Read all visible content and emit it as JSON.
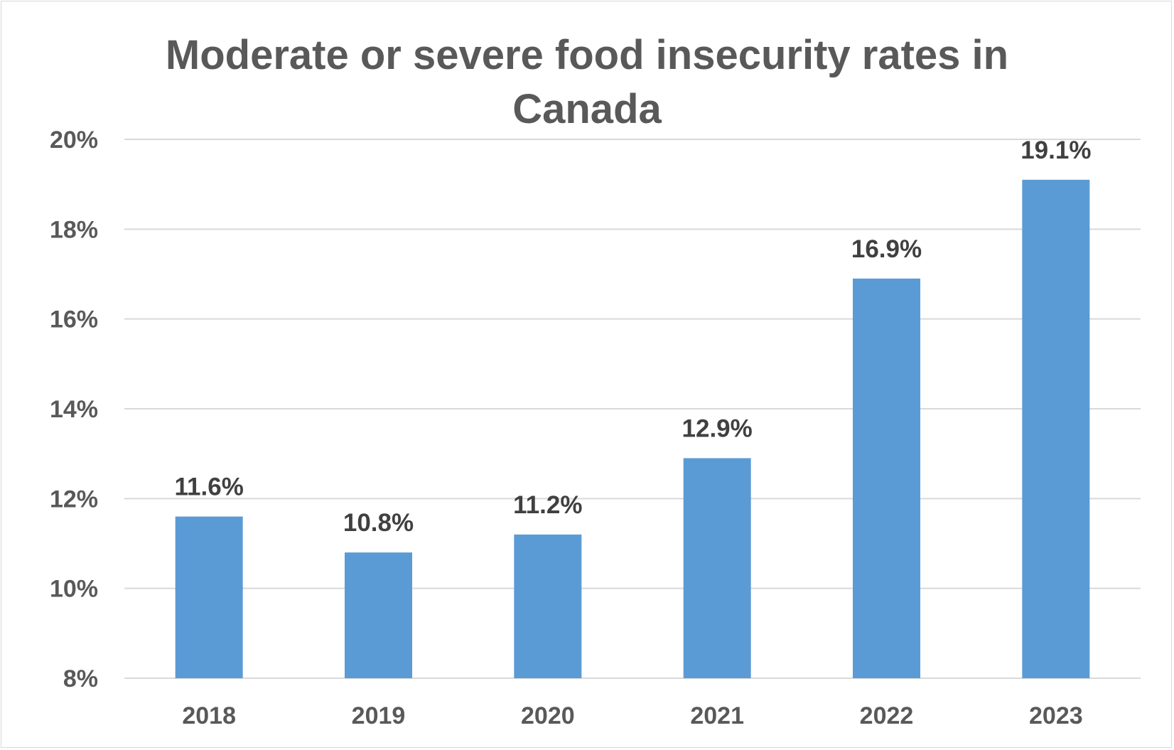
{
  "chart_data": {
    "type": "bar",
    "title": "Moderate or severe food insecurity rates in Canada",
    "title_lines": [
      "Moderate or severe food insecurity rates in",
      "Canada"
    ],
    "categories": [
      "2018",
      "2019",
      "2020",
      "2021",
      "2022",
      "2023"
    ],
    "values": [
      11.6,
      10.8,
      11.2,
      12.9,
      16.9,
      19.1
    ],
    "data_labels": [
      "11.6%",
      "10.8%",
      "11.2%",
      "12.9%",
      "16.9%",
      "19.1%"
    ],
    "xlabel": "",
    "ylabel": "",
    "ylim": [
      8,
      20
    ],
    "yticks": [
      8,
      10,
      12,
      14,
      16,
      18,
      20
    ],
    "ytick_labels": [
      "8%",
      "10%",
      "12%",
      "14%",
      "16%",
      "18%",
      "20%"
    ],
    "grid": true,
    "legend": "none",
    "colors": {
      "bar": "#5b9bd5",
      "grid": "#d9d9d9",
      "title": "#595959",
      "tick_label": "#595959",
      "data_label": "#404040"
    }
  }
}
